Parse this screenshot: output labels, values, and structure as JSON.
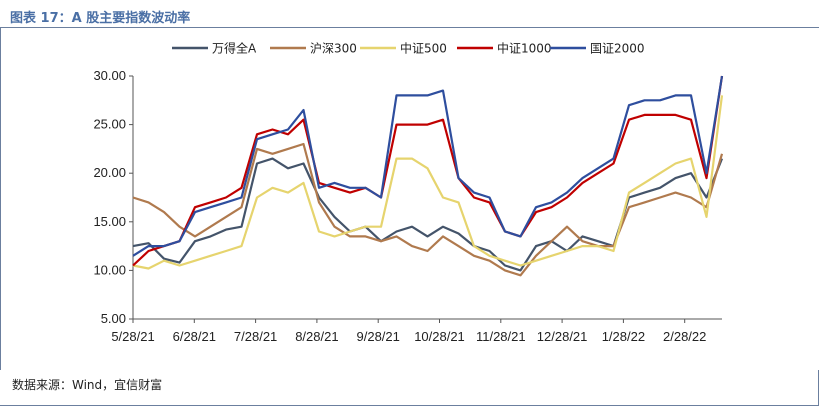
{
  "header": {
    "title": "图表 17：A 股主要指数波动率"
  },
  "footer": {
    "source": "数据来源：Wind，宜信财富"
  },
  "chart_data": {
    "type": "line",
    "title": "",
    "xlabel": "",
    "ylabel": "",
    "ylim": [
      5,
      30
    ],
    "yticks": [
      "5.00",
      "10.00",
      "15.00",
      "20.00",
      "25.00",
      "30.00"
    ],
    "xticks": [
      "5/28/21",
      "6/28/21",
      "7/28/21",
      "8/28/21",
      "9/28/21",
      "10/28/21",
      "11/28/21",
      "12/28/21",
      "1/28/22",
      "2/28/22"
    ],
    "legend_position": "top",
    "grid": false,
    "x": [
      "5/28/21",
      "6/5/21",
      "6/13/21",
      "6/21/21",
      "6/28/21",
      "7/5/21",
      "7/12/21",
      "7/19/21",
      "7/28/21",
      "8/5/21",
      "8/12/21",
      "8/19/21",
      "8/28/21",
      "9/5/21",
      "9/12/21",
      "9/20/21",
      "9/28/21",
      "10/6/21",
      "10/13/21",
      "10/20/21",
      "10/28/21",
      "11/5/21",
      "11/12/21",
      "11/20/21",
      "11/28/21",
      "12/5/21",
      "12/12/21",
      "12/20/21",
      "12/28/21",
      "1/5/22",
      "1/12/22",
      "1/20/22",
      "1/28/22",
      "2/5/22",
      "2/12/22",
      "2/20/22",
      "2/28/22",
      "3/7/22",
      "3/14/22"
    ],
    "series": [
      {
        "name": "万得全A",
        "color": "#44546a",
        "values": [
          12.5,
          12.8,
          11.2,
          10.8,
          13.0,
          13.5,
          14.2,
          14.5,
          21.0,
          21.5,
          20.5,
          21.0,
          17.5,
          15.5,
          14.0,
          14.5,
          13.0,
          14.0,
          14.5,
          13.5,
          14.5,
          13.8,
          12.5,
          12.0,
          10.5,
          10.0,
          12.5,
          13.0,
          12.0,
          13.5,
          13.0,
          12.5,
          17.5,
          18.0,
          18.5,
          19.5,
          20.0,
          17.5,
          21.5
        ]
      },
      {
        "name": "沪深300",
        "color": "#b07a4e",
        "values": [
          17.5,
          17.0,
          16.0,
          14.5,
          13.5,
          14.5,
          15.5,
          16.5,
          22.5,
          22.0,
          22.5,
          23.0,
          17.0,
          14.5,
          13.5,
          13.5,
          13.0,
          13.5,
          12.5,
          12.0,
          13.5,
          12.5,
          11.5,
          11.0,
          10.0,
          9.5,
          11.5,
          13.0,
          14.5,
          13.0,
          12.5,
          12.5,
          16.5,
          17.0,
          17.5,
          18.0,
          17.5,
          16.5,
          22.0
        ]
      },
      {
        "name": "中证500",
        "color": "#e6d46e",
        "values": [
          10.5,
          10.2,
          11.0,
          10.5,
          11.0,
          11.5,
          12.0,
          12.5,
          17.5,
          18.5,
          18.0,
          19.0,
          14.0,
          13.5,
          14.0,
          14.5,
          14.5,
          21.5,
          21.5,
          20.5,
          17.5,
          17.0,
          12.5,
          11.5,
          11.0,
          10.5,
          11.0,
          11.5,
          12.0,
          12.5,
          12.5,
          12.0,
          18.0,
          19.0,
          20.0,
          21.0,
          21.5,
          15.5,
          28.0
        ]
      },
      {
        "name": "中证1000",
        "color": "#c00000",
        "values": [
          10.5,
          12.0,
          12.5,
          13.0,
          16.5,
          17.0,
          17.5,
          18.5,
          24.0,
          24.5,
          24.0,
          25.5,
          19.0,
          18.5,
          18.0,
          18.5,
          17.5,
          25.0,
          25.0,
          25.0,
          25.5,
          19.5,
          17.5,
          17.0,
          14.0,
          13.5,
          16.0,
          16.5,
          17.5,
          19.0,
          20.0,
          21.0,
          25.5,
          26.0,
          26.0,
          26.0,
          25.5,
          19.5,
          30.0
        ]
      },
      {
        "name": "国证2000",
        "color": "#2e4e9e",
        "values": [
          11.5,
          12.5,
          12.5,
          13.0,
          16.0,
          16.5,
          17.0,
          17.5,
          23.5,
          24.0,
          24.5,
          26.5,
          18.5,
          19.0,
          18.5,
          18.5,
          17.5,
          28.0,
          28.0,
          28.0,
          28.5,
          19.5,
          18.0,
          17.5,
          14.0,
          13.5,
          16.5,
          17.0,
          18.0,
          19.5,
          20.5,
          21.5,
          27.0,
          27.5,
          27.5,
          28.0,
          28.0,
          20.0,
          30.0
        ]
      }
    ]
  }
}
